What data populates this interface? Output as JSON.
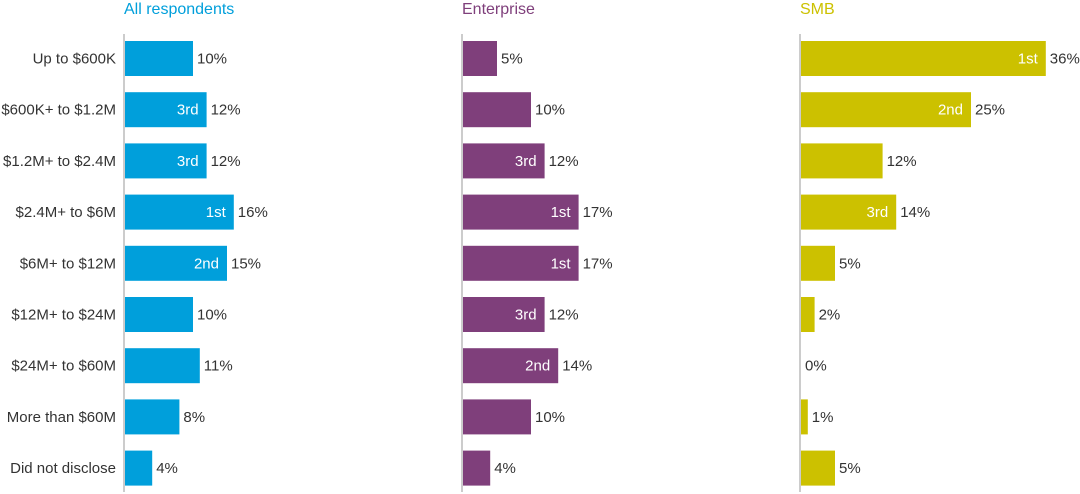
{
  "chart_data": {
    "type": "bar",
    "orientation": "horizontal",
    "categories": [
      "Up to $600K",
      "$600K+ to $1.2M",
      "$1.2M+ to $2.4M",
      "$2.4M+ to $6M",
      "$6M+ to $12M",
      "$12M+ to $24M",
      "$24M+ to $60M",
      "More than $60M",
      "Did not disclose"
    ],
    "series": [
      {
        "name": "All respondents",
        "color": "#009fdb",
        "values": [
          10,
          12,
          12,
          16,
          15,
          10,
          11,
          8,
          4
        ],
        "ranks": [
          "",
          "3rd",
          "3rd",
          "1st",
          "2nd",
          "",
          "",
          "",
          ""
        ]
      },
      {
        "name": "Enterprise",
        "color": "#7f3f7b",
        "values": [
          5,
          10,
          12,
          17,
          17,
          12,
          14,
          10,
          4
        ],
        "ranks": [
          "",
          "",
          "3rd",
          "1st",
          "1st",
          "3rd",
          "2nd",
          "",
          ""
        ]
      },
      {
        "name": "SMB",
        "color": "#ccc100",
        "values": [
          36,
          25,
          12,
          14,
          5,
          2,
          0,
          1,
          5
        ],
        "ranks": [
          "1st",
          "2nd",
          "",
          "3rd",
          "",
          "",
          "",
          "",
          ""
        ]
      }
    ],
    "value_suffix": "%",
    "xlim": [
      0,
      40
    ]
  }
}
